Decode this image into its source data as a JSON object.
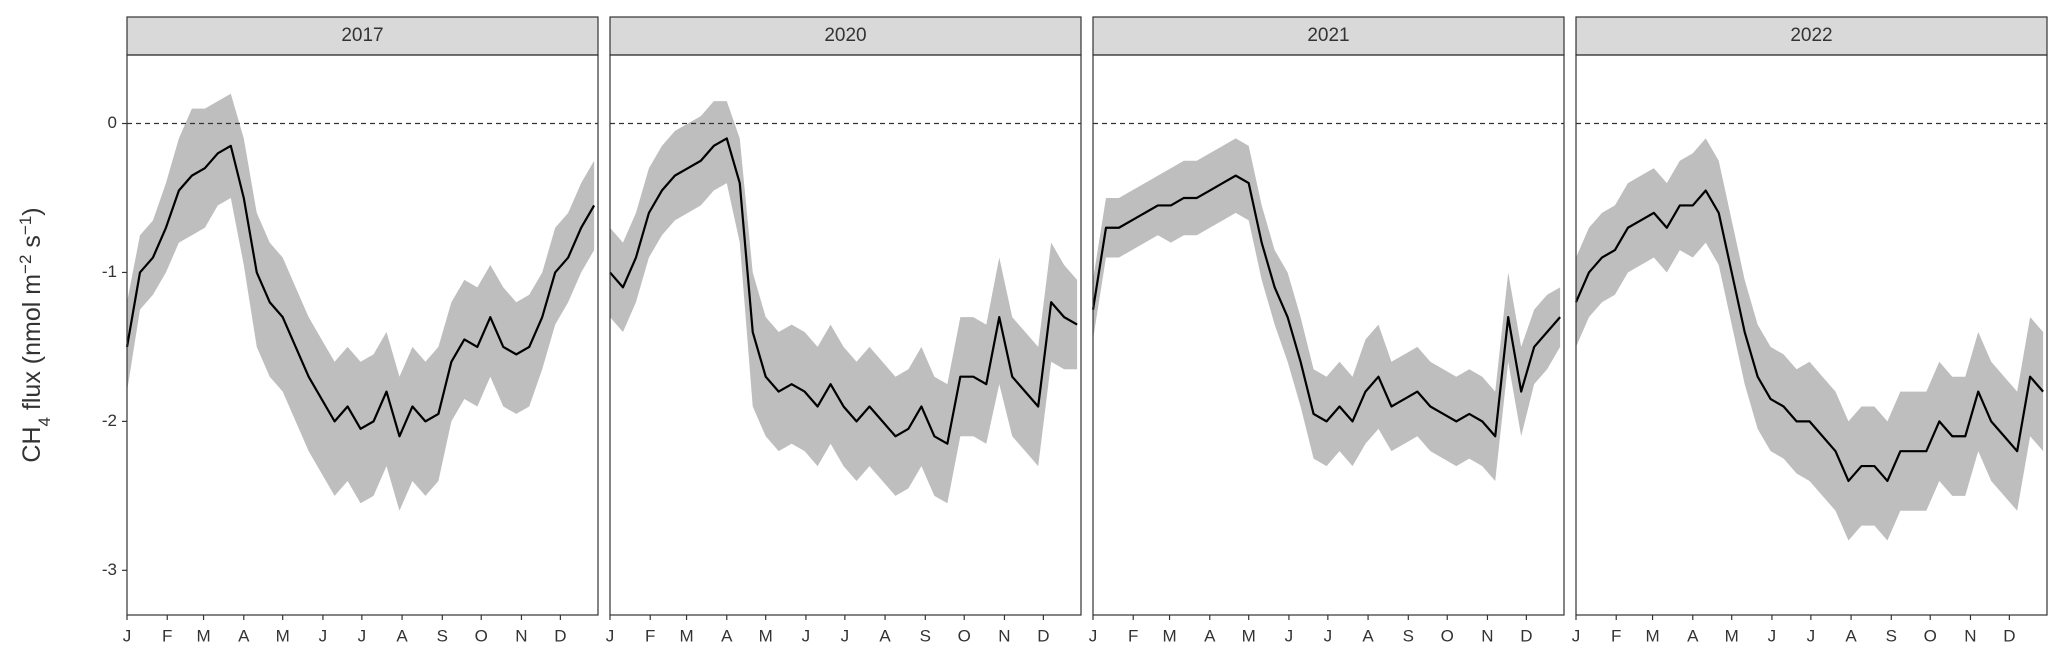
{
  "y_axis": {
    "label": [
      "CH",
      "4",
      " flux (nmol m",
      "−2",
      " s",
      "−1",
      ")"
    ],
    "ylim": [
      -3.3,
      0.46
    ],
    "yticks": [
      0,
      -1,
      -2,
      -3
    ]
  },
  "chart_data": [
    {
      "type": "line",
      "title": "2017",
      "x": [
        1,
        11,
        21,
        31,
        41,
        51,
        61,
        71,
        81,
        91,
        101,
        111,
        121,
        131,
        141,
        151,
        161,
        171,
        181,
        191,
        201,
        211,
        221,
        231,
        241,
        251,
        261,
        271,
        281,
        291,
        301,
        311,
        321,
        331,
        341,
        351,
        361
      ],
      "series": [
        {
          "color": "#000000",
          "values": [
            -1.5,
            -1.0,
            -0.9,
            -0.7,
            -0.45,
            -0.35,
            -0.3,
            -0.2,
            -0.15,
            -0.5,
            -1.0,
            -1.2,
            -1.3,
            -1.5,
            -1.7,
            -1.85,
            -2.0,
            -1.9,
            -2.05,
            -2.0,
            -1.8,
            -2.1,
            -1.9,
            -2.0,
            -1.95,
            -1.6,
            -1.45,
            -1.5,
            -1.3,
            -1.5,
            -1.55,
            -1.5,
            -1.3,
            -1.0,
            -0.9,
            -0.7,
            -0.55
          ]
        }
      ],
      "band": {
        "color": "#bebebe",
        "lower": [
          -1.8,
          -1.25,
          -1.15,
          -1.0,
          -0.8,
          -0.75,
          -0.7,
          -0.55,
          -0.5,
          -0.95,
          -1.5,
          -1.7,
          -1.8,
          -2.0,
          -2.2,
          -2.35,
          -2.5,
          -2.4,
          -2.55,
          -2.5,
          -2.3,
          -2.6,
          -2.4,
          -2.5,
          -2.4,
          -2.0,
          -1.85,
          -1.9,
          -1.7,
          -1.9,
          -1.95,
          -1.9,
          -1.65,
          -1.35,
          -1.2,
          -1.0,
          -0.85
        ],
        "upper": [
          -1.2,
          -0.75,
          -0.65,
          -0.4,
          -0.1,
          0.1,
          0.1,
          0.15,
          0.2,
          -0.1,
          -0.6,
          -0.8,
          -0.9,
          -1.1,
          -1.3,
          -1.45,
          -1.6,
          -1.5,
          -1.6,
          -1.55,
          -1.4,
          -1.7,
          -1.5,
          -1.6,
          -1.5,
          -1.2,
          -1.05,
          -1.1,
          -0.95,
          -1.1,
          -1.2,
          -1.15,
          -1.0,
          -0.7,
          -0.6,
          -0.4,
          -0.25
        ]
      },
      "hline": 0,
      "xlim": [
        1,
        364
      ],
      "xticks": [
        {
          "value": 1,
          "label": "J"
        },
        {
          "value": 32,
          "label": "F"
        },
        {
          "value": 60,
          "label": "M"
        },
        {
          "value": 91,
          "label": "A"
        },
        {
          "value": 121,
          "label": "M"
        },
        {
          "value": 152,
          "label": "J"
        },
        {
          "value": 182,
          "label": "J"
        },
        {
          "value": 213,
          "label": "A"
        },
        {
          "value": 244,
          "label": "S"
        },
        {
          "value": 274,
          "label": "O"
        },
        {
          "value": 305,
          "label": "N"
        },
        {
          "value": 335,
          "label": "D"
        }
      ]
    },
    {
      "type": "line",
      "title": "2020",
      "x": [
        1,
        11,
        21,
        31,
        41,
        51,
        61,
        71,
        81,
        91,
        101,
        111,
        121,
        131,
        141,
        151,
        161,
        171,
        181,
        191,
        201,
        211,
        221,
        231,
        241,
        251,
        261,
        271,
        281,
        291,
        301,
        311,
        321,
        331,
        341,
        351,
        361
      ],
      "series": [
        {
          "color": "#000000",
          "values": [
            -1.0,
            -1.1,
            -0.9,
            -0.6,
            -0.45,
            -0.35,
            -0.3,
            -0.25,
            -0.15,
            -0.1,
            -0.4,
            -1.4,
            -1.7,
            -1.8,
            -1.75,
            -1.8,
            -1.9,
            -1.75,
            -1.9,
            -2.0,
            -1.9,
            -2.0,
            -2.1,
            -2.05,
            -1.9,
            -2.1,
            -2.15,
            -1.7,
            -1.7,
            -1.75,
            -1.3,
            -1.7,
            -1.8,
            -1.9,
            -1.2,
            -1.3,
            -1.35
          ]
        }
      ],
      "band": {
        "color": "#bebebe",
        "lower": [
          -1.3,
          -1.4,
          -1.2,
          -0.9,
          -0.75,
          -0.65,
          -0.6,
          -0.55,
          -0.45,
          -0.4,
          -0.8,
          -1.9,
          -2.1,
          -2.2,
          -2.15,
          -2.2,
          -2.3,
          -2.15,
          -2.3,
          -2.4,
          -2.3,
          -2.4,
          -2.5,
          -2.45,
          -2.3,
          -2.5,
          -2.55,
          -2.1,
          -2.1,
          -2.15,
          -1.75,
          -2.1,
          -2.2,
          -2.3,
          -1.6,
          -1.65,
          -1.65
        ],
        "upper": [
          -0.7,
          -0.8,
          -0.6,
          -0.3,
          -0.15,
          -0.05,
          0.0,
          0.05,
          0.15,
          0.15,
          -0.1,
          -1.0,
          -1.3,
          -1.4,
          -1.35,
          -1.4,
          -1.5,
          -1.35,
          -1.5,
          -1.6,
          -1.5,
          -1.6,
          -1.7,
          -1.65,
          -1.5,
          -1.7,
          -1.75,
          -1.3,
          -1.3,
          -1.35,
          -0.9,
          -1.3,
          -1.4,
          -1.5,
          -0.8,
          -0.95,
          -1.05
        ]
      },
      "hline": 0,
      "xlim": [
        1,
        364
      ],
      "xticks": [
        {
          "value": 1,
          "label": "J"
        },
        {
          "value": 32,
          "label": "F"
        },
        {
          "value": 60,
          "label": "M"
        },
        {
          "value": 91,
          "label": "A"
        },
        {
          "value": 121,
          "label": "M"
        },
        {
          "value": 152,
          "label": "J"
        },
        {
          "value": 182,
          "label": "J"
        },
        {
          "value": 213,
          "label": "A"
        },
        {
          "value": 244,
          "label": "S"
        },
        {
          "value": 274,
          "label": "O"
        },
        {
          "value": 305,
          "label": "N"
        },
        {
          "value": 335,
          "label": "D"
        }
      ]
    },
    {
      "type": "line",
      "title": "2021",
      "x": [
        1,
        11,
        21,
        31,
        41,
        51,
        61,
        71,
        81,
        91,
        101,
        111,
        121,
        131,
        141,
        151,
        161,
        171,
        181,
        191,
        201,
        211,
        221,
        231,
        241,
        251,
        261,
        271,
        281,
        291,
        301,
        311,
        321,
        331,
        341,
        351,
        361
      ],
      "series": [
        {
          "color": "#000000",
          "values": [
            -1.25,
            -0.7,
            -0.7,
            -0.65,
            -0.6,
            -0.55,
            -0.55,
            -0.5,
            -0.5,
            -0.45,
            -0.4,
            -0.35,
            -0.4,
            -0.8,
            -1.1,
            -1.3,
            -1.6,
            -1.95,
            -2.0,
            -1.9,
            -2.0,
            -1.8,
            -1.7,
            -1.9,
            -1.85,
            -1.8,
            -1.9,
            -1.95,
            -2.0,
            -1.95,
            -2.0,
            -2.1,
            -1.3,
            -1.8,
            -1.5,
            -1.4,
            -1.3
          ]
        }
      ],
      "band": {
        "color": "#bebebe",
        "lower": [
          -1.45,
          -0.9,
          -0.9,
          -0.85,
          -0.8,
          -0.75,
          -0.8,
          -0.75,
          -0.75,
          -0.7,
          -0.65,
          -0.6,
          -0.65,
          -1.05,
          -1.35,
          -1.6,
          -1.9,
          -2.25,
          -2.3,
          -2.2,
          -2.3,
          -2.15,
          -2.05,
          -2.2,
          -2.15,
          -2.1,
          -2.2,
          -2.25,
          -2.3,
          -2.25,
          -2.3,
          -2.4,
          -1.6,
          -2.1,
          -1.75,
          -1.65,
          -1.5
        ],
        "upper": [
          -1.05,
          -0.5,
          -0.5,
          -0.45,
          -0.4,
          -0.35,
          -0.3,
          -0.25,
          -0.25,
          -0.2,
          -0.15,
          -0.1,
          -0.15,
          -0.55,
          -0.85,
          -1.0,
          -1.3,
          -1.65,
          -1.7,
          -1.6,
          -1.7,
          -1.45,
          -1.35,
          -1.6,
          -1.55,
          -1.5,
          -1.6,
          -1.65,
          -1.7,
          -1.65,
          -1.7,
          -1.8,
          -1.0,
          -1.5,
          -1.25,
          -1.15,
          -1.1
        ]
      },
      "hline": 0,
      "xlim": [
        1,
        364
      ],
      "xticks": [
        {
          "value": 1,
          "label": "J"
        },
        {
          "value": 32,
          "label": "F"
        },
        {
          "value": 60,
          "label": "M"
        },
        {
          "value": 91,
          "label": "A"
        },
        {
          "value": 121,
          "label": "M"
        },
        {
          "value": 152,
          "label": "J"
        },
        {
          "value": 182,
          "label": "J"
        },
        {
          "value": 213,
          "label": "A"
        },
        {
          "value": 244,
          "label": "S"
        },
        {
          "value": 274,
          "label": "O"
        },
        {
          "value": 305,
          "label": "N"
        },
        {
          "value": 335,
          "label": "D"
        }
      ]
    },
    {
      "type": "line",
      "title": "2022",
      "x": [
        1,
        11,
        21,
        31,
        41,
        51,
        61,
        71,
        81,
        91,
        101,
        111,
        121,
        131,
        141,
        151,
        161,
        171,
        181,
        191,
        201,
        211,
        221,
        231,
        241,
        251,
        261,
        271,
        281,
        291,
        301,
        311,
        321,
        331,
        341,
        351,
        361
      ],
      "series": [
        {
          "color": "#000000",
          "values": [
            -1.2,
            -1.0,
            -0.9,
            -0.85,
            -0.7,
            -0.65,
            -0.6,
            -0.7,
            -0.55,
            -0.55,
            -0.45,
            -0.6,
            -1.0,
            -1.4,
            -1.7,
            -1.85,
            -1.9,
            -2.0,
            -2.0,
            -2.1,
            -2.2,
            -2.4,
            -2.3,
            -2.3,
            -2.4,
            -2.2,
            -2.2,
            -2.2,
            -2.0,
            -2.1,
            -2.1,
            -1.8,
            -2.0,
            -2.1,
            -2.2,
            -1.7,
            -1.8
          ]
        }
      ],
      "band": {
        "color": "#bebebe",
        "lower": [
          -1.5,
          -1.3,
          -1.2,
          -1.15,
          -1.0,
          -0.95,
          -0.9,
          -1.0,
          -0.85,
          -0.9,
          -0.8,
          -0.95,
          -1.35,
          -1.75,
          -2.05,
          -2.2,
          -2.25,
          -2.35,
          -2.4,
          -2.5,
          -2.6,
          -2.8,
          -2.7,
          -2.7,
          -2.8,
          -2.6,
          -2.6,
          -2.6,
          -2.4,
          -2.5,
          -2.5,
          -2.2,
          -2.4,
          -2.5,
          -2.6,
          -2.1,
          -2.2
        ],
        "upper": [
          -0.9,
          -0.7,
          -0.6,
          -0.55,
          -0.4,
          -0.35,
          -0.3,
          -0.4,
          -0.25,
          -0.2,
          -0.1,
          -0.25,
          -0.65,
          -1.05,
          -1.35,
          -1.5,
          -1.55,
          -1.65,
          -1.6,
          -1.7,
          -1.8,
          -2.0,
          -1.9,
          -1.9,
          -2.0,
          -1.8,
          -1.8,
          -1.8,
          -1.6,
          -1.7,
          -1.7,
          -1.4,
          -1.6,
          -1.7,
          -1.8,
          -1.3,
          -1.4
        ]
      },
      "hline": 0,
      "xlim": [
        1,
        364
      ],
      "xticks": [
        {
          "value": 1,
          "label": "J"
        },
        {
          "value": 32,
          "label": "F"
        },
        {
          "value": 60,
          "label": "M"
        },
        {
          "value": 91,
          "label": "A"
        },
        {
          "value": 121,
          "label": "M"
        },
        {
          "value": 152,
          "label": "J"
        },
        {
          "value": 182,
          "label": "J"
        },
        {
          "value": 213,
          "label": "A"
        },
        {
          "value": 244,
          "label": "S"
        },
        {
          "value": 274,
          "label": "O"
        },
        {
          "value": 305,
          "label": "N"
        },
        {
          "value": 335,
          "label": "D"
        }
      ]
    }
  ]
}
